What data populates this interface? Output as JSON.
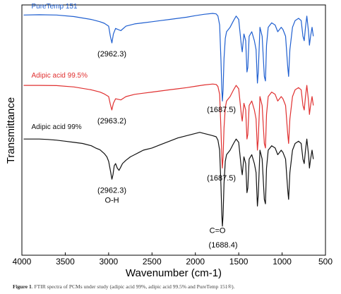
{
  "chart_data": {
    "type": "line",
    "xlabel": "Wavenumber (cm-1)",
    "ylabel": "Transmittance",
    "xlim": [
      4000,
      500
    ],
    "x_ticks": [
      "4000",
      "3500",
      "3000",
      "2500",
      "2000",
      "1500",
      "1000",
      "500"
    ],
    "x_tick_values": [
      4000,
      3500,
      3000,
      2500,
      2000,
      1500,
      1000,
      500
    ],
    "series": [
      {
        "name": "PureTemp 151",
        "color": "#1f5fd0",
        "points": [
          [
            3980,
            0.955
          ],
          [
            3800,
            0.956
          ],
          [
            3600,
            0.955
          ],
          [
            3400,
            0.948
          ],
          [
            3200,
            0.935
          ],
          [
            3100,
            0.925
          ],
          [
            3050,
            0.918
          ],
          [
            3000,
            0.905
          ],
          [
            2980,
            0.86
          ],
          [
            2962,
            0.83
          ],
          [
            2945,
            0.87
          ],
          [
            2920,
            0.895
          ],
          [
            2860,
            0.885
          ],
          [
            2800,
            0.905
          ],
          [
            2700,
            0.915
          ],
          [
            2600,
            0.92
          ],
          [
            2500,
            0.925
          ],
          [
            2400,
            0.93
          ],
          [
            2300,
            0.935
          ],
          [
            2200,
            0.94
          ],
          [
            2100,
            0.945
          ],
          [
            2000,
            0.952
          ],
          [
            1900,
            0.958
          ],
          [
            1800,
            0.962
          ],
          [
            1760,
            0.96
          ],
          [
            1740,
            0.95
          ],
          [
            1720,
            0.91
          ],
          [
            1705,
            0.75
          ],
          [
            1695,
            0.62
          ],
          [
            1688,
            0.57
          ],
          [
            1680,
            0.62
          ],
          [
            1670,
            0.76
          ],
          [
            1655,
            0.85
          ],
          [
            1640,
            0.88
          ],
          [
            1600,
            0.9
          ],
          [
            1560,
            0.93
          ],
          [
            1530,
            0.95
          ],
          [
            1500,
            0.935
          ],
          [
            1470,
            0.82
          ],
          [
            1460,
            0.79
          ],
          [
            1440,
            0.87
          ],
          [
            1420,
            0.84
          ],
          [
            1405,
            0.7
          ],
          [
            1395,
            0.72
          ],
          [
            1380,
            0.86
          ],
          [
            1350,
            0.88
          ],
          [
            1320,
            0.84
          ],
          [
            1300,
            0.8
          ],
          [
            1285,
            0.65
          ],
          [
            1275,
            0.7
          ],
          [
            1255,
            0.9
          ],
          [
            1230,
            0.86
          ],
          [
            1205,
            0.68
          ],
          [
            1192,
            0.66
          ],
          [
            1180,
            0.82
          ],
          [
            1160,
            0.9
          ],
          [
            1120,
            0.92
          ],
          [
            1080,
            0.91
          ],
          [
            1050,
            0.88
          ],
          [
            1030,
            0.89
          ],
          [
            1010,
            0.9
          ],
          [
            990,
            0.89
          ],
          [
            960,
            0.86
          ],
          [
            935,
            0.72
          ],
          [
            925,
            0.68
          ],
          [
            910,
            0.8
          ],
          [
            880,
            0.9
          ],
          [
            850,
            0.93
          ],
          [
            810,
            0.94
          ],
          [
            780,
            0.93
          ],
          [
            760,
            0.86
          ],
          [
            745,
            0.84
          ],
          [
            730,
            0.9
          ],
          [
            715,
            0.95
          ],
          [
            695,
            0.88
          ],
          [
            685,
            0.82
          ],
          [
            672,
            0.86
          ],
          [
            655,
            0.9
          ],
          [
            640,
            0.86
          ]
        ]
      },
      {
        "name": "Adipic acid 99.5%",
        "color": "#e03030",
        "points": [
          [
            3980,
            0.64
          ],
          [
            3800,
            0.64
          ],
          [
            3600,
            0.639
          ],
          [
            3400,
            0.633
          ],
          [
            3200,
            0.62
          ],
          [
            3100,
            0.61
          ],
          [
            3050,
            0.602
          ],
          [
            3000,
            0.59
          ],
          [
            2980,
            0.555
          ],
          [
            2963,
            0.53
          ],
          [
            2945,
            0.56
          ],
          [
            2920,
            0.58
          ],
          [
            2860,
            0.575
          ],
          [
            2800,
            0.59
          ],
          [
            2700,
            0.6
          ],
          [
            2600,
            0.605
          ],
          [
            2500,
            0.61
          ],
          [
            2400,
            0.615
          ],
          [
            2300,
            0.62
          ],
          [
            2200,
            0.625
          ],
          [
            2100,
            0.63
          ],
          [
            2000,
            0.636
          ],
          [
            1900,
            0.642
          ],
          [
            1800,
            0.646
          ],
          [
            1760,
            0.644
          ],
          [
            1740,
            0.635
          ],
          [
            1720,
            0.6
          ],
          [
            1705,
            0.44
          ],
          [
            1695,
            0.32
          ],
          [
            1688,
            0.27
          ],
          [
            1680,
            0.32
          ],
          [
            1670,
            0.45
          ],
          [
            1655,
            0.54
          ],
          [
            1640,
            0.57
          ],
          [
            1600,
            0.59
          ],
          [
            1560,
            0.62
          ],
          [
            1530,
            0.64
          ],
          [
            1500,
            0.625
          ],
          [
            1470,
            0.51
          ],
          [
            1460,
            0.48
          ],
          [
            1440,
            0.56
          ],
          [
            1420,
            0.53
          ],
          [
            1405,
            0.4
          ],
          [
            1395,
            0.42
          ],
          [
            1380,
            0.55
          ],
          [
            1350,
            0.57
          ],
          [
            1320,
            0.53
          ],
          [
            1300,
            0.49
          ],
          [
            1285,
            0.35
          ],
          [
            1275,
            0.4
          ],
          [
            1255,
            0.59
          ],
          [
            1230,
            0.55
          ],
          [
            1205,
            0.38
          ],
          [
            1192,
            0.36
          ],
          [
            1180,
            0.51
          ],
          [
            1160,
            0.59
          ],
          [
            1120,
            0.61
          ],
          [
            1080,
            0.6
          ],
          [
            1050,
            0.57
          ],
          [
            1030,
            0.58
          ],
          [
            1010,
            0.59
          ],
          [
            990,
            0.58
          ],
          [
            960,
            0.55
          ],
          [
            935,
            0.42
          ],
          [
            925,
            0.38
          ],
          [
            910,
            0.49
          ],
          [
            880,
            0.59
          ],
          [
            850,
            0.62
          ],
          [
            810,
            0.63
          ],
          [
            780,
            0.62
          ],
          [
            760,
            0.55
          ],
          [
            745,
            0.53
          ],
          [
            730,
            0.59
          ],
          [
            715,
            0.64
          ],
          [
            695,
            0.57
          ],
          [
            685,
            0.51
          ],
          [
            672,
            0.55
          ],
          [
            655,
            0.59
          ],
          [
            640,
            0.55
          ]
        ]
      },
      {
        "name": "Adipic acid 99%",
        "color": "#111111",
        "points": [
          [
            3980,
            0.4
          ],
          [
            3800,
            0.4
          ],
          [
            3700,
            0.398
          ],
          [
            3600,
            0.395
          ],
          [
            3500,
            0.39
          ],
          [
            3400,
            0.385
          ],
          [
            3300,
            0.38
          ],
          [
            3200,
            0.37
          ],
          [
            3150,
            0.36
          ],
          [
            3100,
            0.352
          ],
          [
            3050,
            0.335
          ],
          [
            3020,
            0.32
          ],
          [
            3000,
            0.3
          ],
          [
            2980,
            0.26
          ],
          [
            2962,
            0.22
          ],
          [
            2950,
            0.24
          ],
          [
            2935,
            0.28
          ],
          [
            2920,
            0.29
          ],
          [
            2900,
            0.27
          ],
          [
            2880,
            0.26
          ],
          [
            2860,
            0.275
          ],
          [
            2840,
            0.29
          ],
          [
            2800,
            0.305
          ],
          [
            2750,
            0.32
          ],
          [
            2700,
            0.33
          ],
          [
            2650,
            0.34
          ],
          [
            2600,
            0.35
          ],
          [
            2500,
            0.36
          ],
          [
            2400,
            0.375
          ],
          [
            2300,
            0.39
          ],
          [
            2200,
            0.405
          ],
          [
            2100,
            0.415
          ],
          [
            2000,
            0.425
          ],
          [
            1950,
            0.43
          ],
          [
            1900,
            0.425
          ],
          [
            1850,
            0.42
          ],
          [
            1800,
            0.415
          ],
          [
            1760,
            0.41
          ],
          [
            1740,
            0.395
          ],
          [
            1720,
            0.35
          ],
          [
            1705,
            0.19
          ],
          [
            1695,
            0.06
          ],
          [
            1688,
            0.01
          ],
          [
            1680,
            0.06
          ],
          [
            1670,
            0.2
          ],
          [
            1655,
            0.3
          ],
          [
            1640,
            0.33
          ],
          [
            1600,
            0.35
          ],
          [
            1560,
            0.38
          ],
          [
            1530,
            0.4
          ],
          [
            1500,
            0.385
          ],
          [
            1470,
            0.27
          ],
          [
            1460,
            0.24
          ],
          [
            1440,
            0.32
          ],
          [
            1420,
            0.29
          ],
          [
            1405,
            0.16
          ],
          [
            1395,
            0.18
          ],
          [
            1380,
            0.31
          ],
          [
            1350,
            0.33
          ],
          [
            1320,
            0.29
          ],
          [
            1300,
            0.25
          ],
          [
            1285,
            0.1
          ],
          [
            1275,
            0.15
          ],
          [
            1255,
            0.35
          ],
          [
            1230,
            0.31
          ],
          [
            1205,
            0.13
          ],
          [
            1192,
            0.11
          ],
          [
            1180,
            0.27
          ],
          [
            1160,
            0.35
          ],
          [
            1120,
            0.37
          ],
          [
            1080,
            0.36
          ],
          [
            1050,
            0.33
          ],
          [
            1030,
            0.34
          ],
          [
            1010,
            0.35
          ],
          [
            990,
            0.34
          ],
          [
            960,
            0.31
          ],
          [
            935,
            0.17
          ],
          [
            925,
            0.13
          ],
          [
            910,
            0.25
          ],
          [
            880,
            0.35
          ],
          [
            850,
            0.38
          ],
          [
            810,
            0.39
          ],
          [
            780,
            0.38
          ],
          [
            760,
            0.31
          ],
          [
            745,
            0.29
          ],
          [
            730,
            0.35
          ],
          [
            715,
            0.4
          ],
          [
            695,
            0.33
          ],
          [
            685,
            0.27
          ],
          [
            672,
            0.31
          ],
          [
            655,
            0.35
          ],
          [
            640,
            0.31
          ]
        ]
      }
    ],
    "annotations": [
      {
        "text": "(2962.3)",
        "x": 2962,
        "y": 0.77
      },
      {
        "text": "(1687.5)",
        "x": 1700,
        "y": 0.52
      },
      {
        "text": "(2963.2)",
        "x": 2963,
        "y": 0.47
      },
      {
        "text": "(1687.5)",
        "x": 1700,
        "y": 0.215
      },
      {
        "text": "(2962.3)",
        "x": 2962,
        "y": 0.16
      },
      {
        "text": "O-H",
        "x": 2962,
        "y": 0.115
      },
      {
        "text": "C=O",
        "x": 1745,
        "y": -0.02
      },
      {
        "text": "(1688.4)",
        "x": 1680,
        "y": -0.085
      }
    ],
    "ylim": [
      -0.12,
      1.0
    ],
    "grid": false,
    "y_tick_labels": false
  },
  "caption": {
    "label": "Figure 1",
    "text": ". FTIR spectra of PCMs under study (adipic acid 99%, adipic acid 99.5% and PureTemp 151®)."
  }
}
